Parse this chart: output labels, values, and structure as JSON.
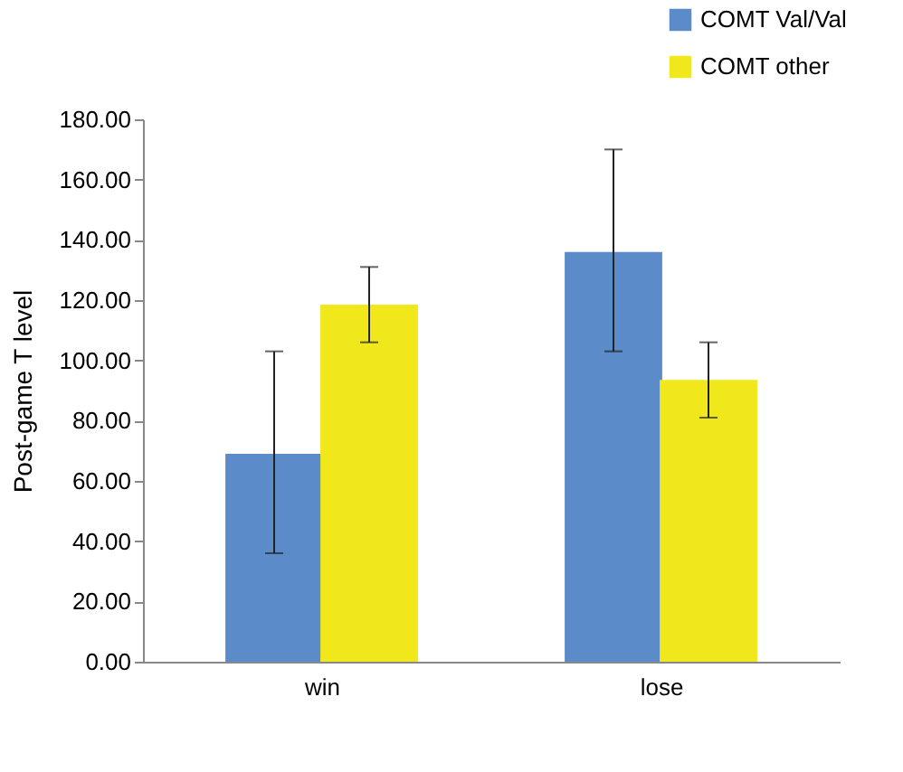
{
  "chart_data": {
    "type": "bar",
    "ylabel": "Post-game T level",
    "categories": [
      "win",
      "lose"
    ],
    "series": [
      {
        "name": "COMT Val/Val",
        "color": "#5b8bc9",
        "values": [
          69,
          136
        ],
        "errors": [
          [
            36,
            103
          ],
          [
            103,
            170
          ]
        ]
      },
      {
        "name": "COMT other",
        "color": "#f0e81a",
        "values": [
          118.5,
          93.5
        ],
        "errors": [
          [
            106,
            131
          ],
          [
            81,
            106
          ]
        ]
      }
    ],
    "ylim": [
      0,
      180
    ],
    "yticks": [
      {
        "value": 0,
        "label": "0.00"
      },
      {
        "value": 20,
        "label": "20.00"
      },
      {
        "value": 40,
        "label": "40.00"
      },
      {
        "value": 60,
        "label": "60.00"
      },
      {
        "value": 80,
        "label": "80.00"
      },
      {
        "value": 100,
        "label": "100.00"
      },
      {
        "value": 120,
        "label": "120.00"
      },
      {
        "value": 140,
        "label": "140.00"
      },
      {
        "value": 160,
        "label": "160.00"
      },
      {
        "value": 180,
        "label": "180.00"
      }
    ],
    "grid": false,
    "legend": "top right"
  }
}
